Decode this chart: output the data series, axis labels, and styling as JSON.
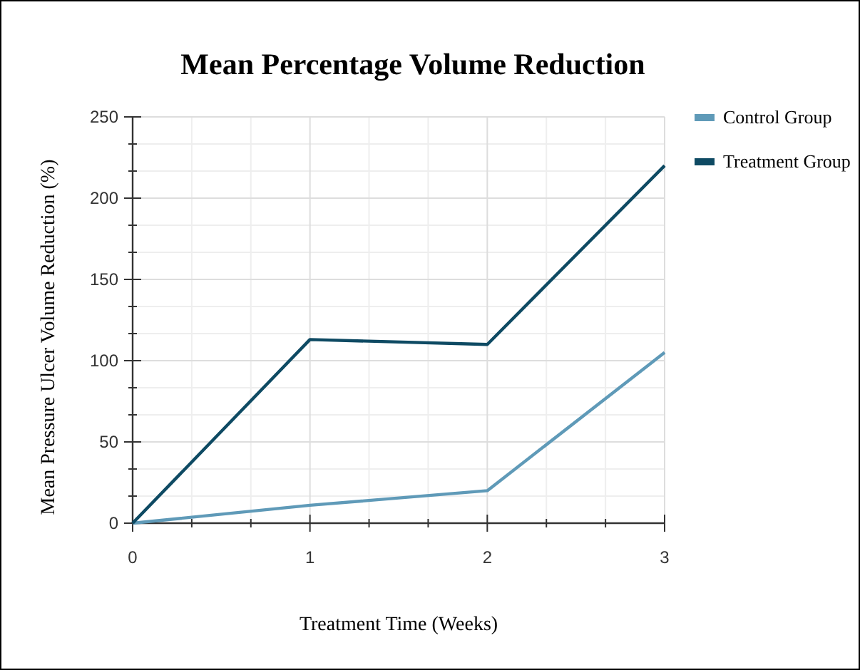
{
  "chart_data": {
    "type": "line",
    "title": "Mean Percentage Volume Reduction",
    "xlabel": "Treatment Time (Weeks)",
    "ylabel": "Mean Pressure Ulcer Volume Reduction (%)",
    "x": [
      0,
      1,
      2,
      3
    ],
    "series": [
      {
        "name": "Control Group",
        "color": "#5f9ab8",
        "values": [
          0,
          11,
          20,
          105
        ]
      },
      {
        "name": "Treatment Group",
        "color": "#0e4a63",
        "values": [
          0,
          113,
          110,
          220
        ]
      }
    ],
    "xlim": [
      0,
      3
    ],
    "xticks": [
      0,
      1,
      2,
      3
    ],
    "ylim": [
      0,
      250
    ],
    "yticks": [
      0,
      50,
      100,
      150,
      200,
      250
    ],
    "grid": true,
    "legend": "right",
    "marker": "none",
    "line_style": "solid"
  }
}
